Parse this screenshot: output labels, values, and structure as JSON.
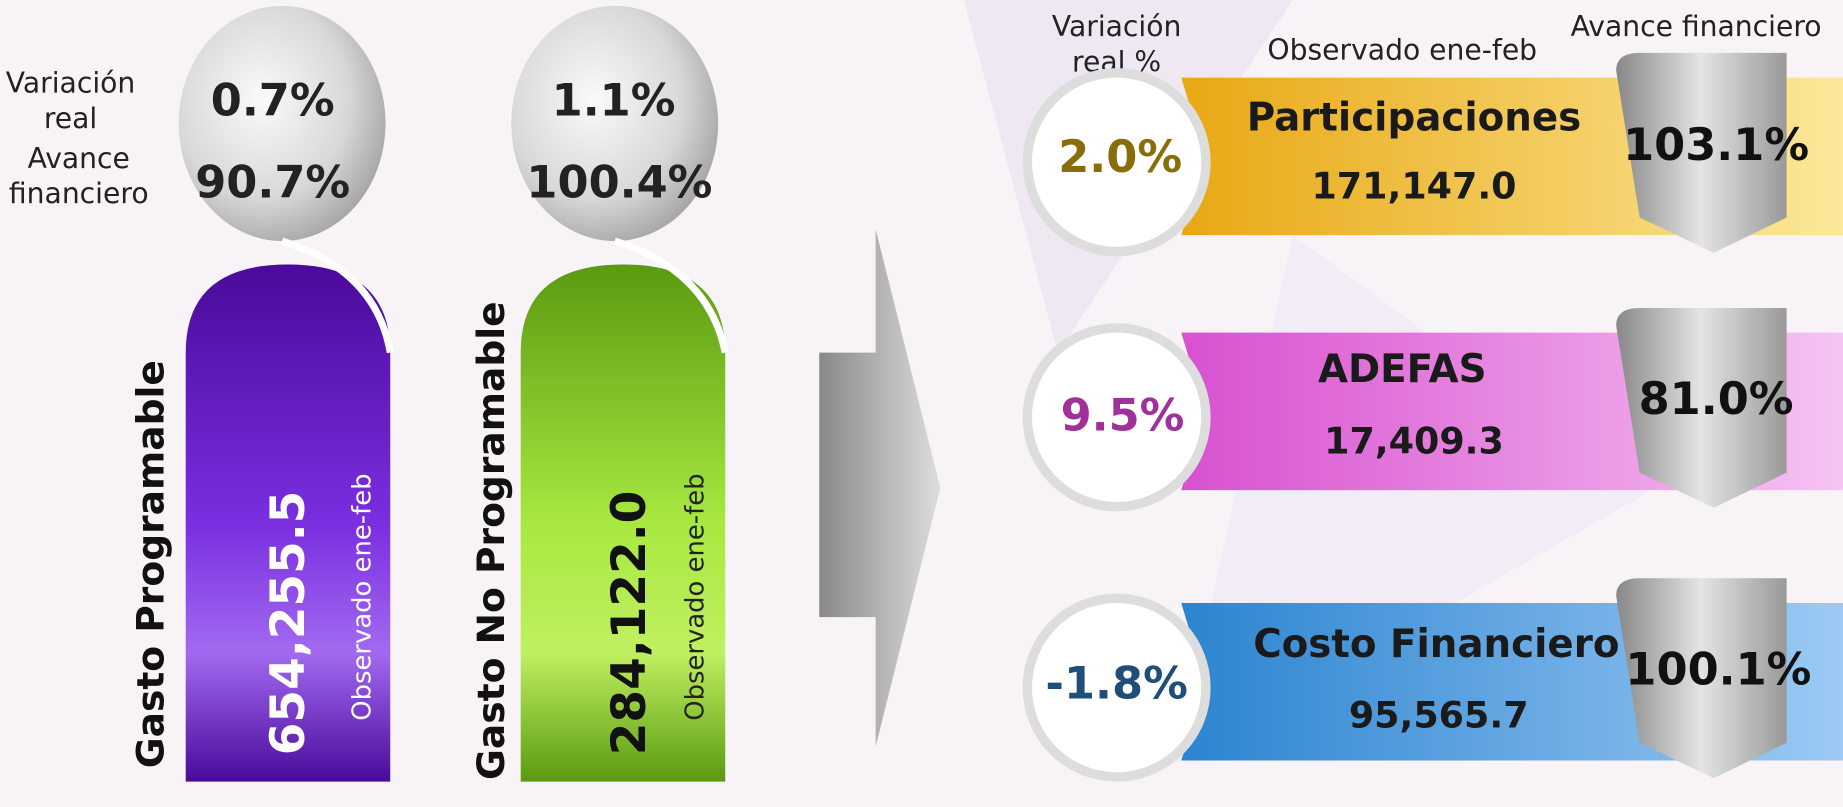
{
  "left_labels": {
    "variacion": [
      "Variación",
      "real"
    ],
    "avance": [
      "Avance",
      "financiero"
    ]
  },
  "cards": [
    {
      "name": "Gasto Programable",
      "value": "654,255.5",
      "caption": "Observado ene-feb",
      "variacion": "0.7%",
      "avance": "90.7%"
    },
    {
      "name": "Gasto No Programable",
      "value": "284,122.0",
      "caption": "Observado ene-feb",
      "variacion": "1.1%",
      "avance": "100.4%"
    }
  ],
  "right_header": {
    "variacion": [
      "Variación",
      "real %"
    ],
    "observado": "Observado ene-feb",
    "avance": "Avance financiero"
  },
  "rows": [
    {
      "name": "Participaciones",
      "value": "171,147.0",
      "variacion": "2.0%",
      "avance": "103.1%"
    },
    {
      "name": "ADEFAS",
      "value": "17,409.3",
      "variacion": "9.5%",
      "avance": "81.0%"
    },
    {
      "name": "Costo Financiero",
      "value": "95,565.7",
      "variacion": "-1.8%",
      "avance": "100.1%"
    }
  ]
}
